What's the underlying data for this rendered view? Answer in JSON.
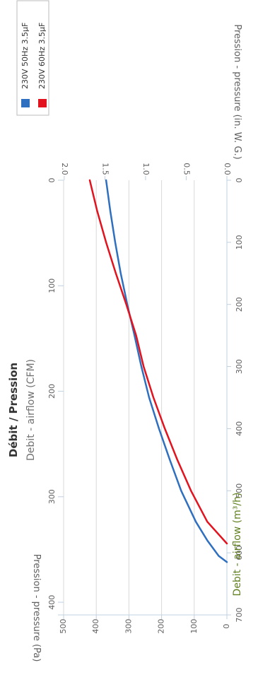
{
  "chart_data": {
    "type": "line",
    "title": "Débit / Pression",
    "subtitle": "Debit - airflow (CFM)",
    "xlabel": "Debit - airflow (m³/h)",
    "ylabel": "Pression - pressure (Pa)",
    "ylabel_secondary": "Pression - pressure (in. W. G.)",
    "xlim": [
      0,
      700
    ],
    "ylim": [
      0,
      500
    ],
    "x_ticks": [
      "0",
      "100",
      "200",
      "300",
      "400",
      "500",
      "600",
      "700"
    ],
    "y_ticks": [
      "0",
      "100",
      "200",
      "300",
      "400",
      "500"
    ],
    "cfm_ticks": [
      "0",
      "100",
      "200",
      "300",
      "400"
    ],
    "inwg_ticks": [
      "0.0",
      "0.5",
      "1.0",
      "1.5",
      "2.0"
    ],
    "grid": true,
    "legend_position": "top-right",
    "series": [
      {
        "name": "230V 50Hz 3.5µF",
        "color": "#2f6fbf",
        "x": [
          0,
          50,
          100,
          150,
          200,
          250,
          300,
          350,
          400,
          450,
          500,
          550,
          580,
          605,
          615
        ],
        "y": [
          370,
          357,
          342,
          325,
          305,
          283,
          262,
          238,
          208,
          175,
          140,
          95,
          60,
          25,
          0
        ]
      },
      {
        "name": "230V 60Hz 3.5µF",
        "color": "#e2131e",
        "x": [
          0,
          50,
          100,
          150,
          200,
          250,
          300,
          350,
          400,
          450,
          500,
          550,
          585
        ],
        "y": [
          420,
          397,
          370,
          340,
          308,
          278,
          255,
          225,
          190,
          152,
          110,
          60,
          0
        ]
      }
    ]
  }
}
